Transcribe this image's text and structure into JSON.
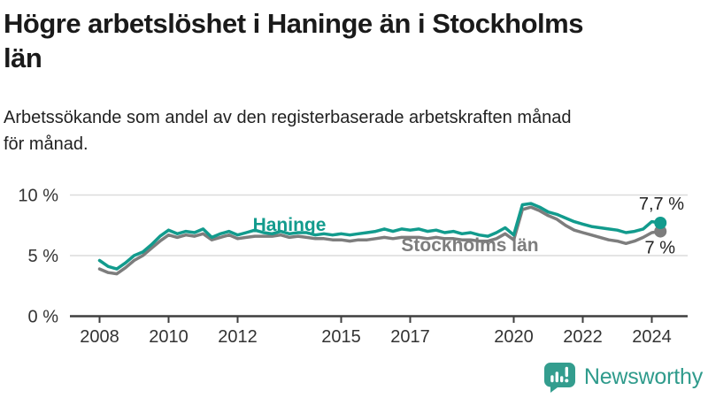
{
  "header": {
    "title": "Högre arbetslöshet i Haninge än i Stockholms län",
    "title_lines": [
      "Högre arbetslöshet i Haninge än i Stockholms",
      "län"
    ],
    "subtitle_lines": [
      "Arbetssökande som andel av den registerbaserade arbetskraften månad",
      "för månad."
    ]
  },
  "colors": {
    "haninge": "#129b8d",
    "stockholm": "#7d7d7d",
    "grid": "#dcdcdc",
    "axis": "#3f3f3f",
    "tick_text": "#333333",
    "value_text": "#222222",
    "brand": "#339d8e"
  },
  "chart_data": {
    "type": "line",
    "title": "Högre arbetslöshet i Haninge än i Stockholms län",
    "subtitle": "Arbetssökande som andel av den registerbaserade arbetskraften månad för månad.",
    "xlim": [
      2007.1,
      2025.0
    ],
    "ylim": [
      0,
      10.8
    ],
    "grid": "horizontal",
    "legend_position": "inline-labels",
    "x_ticks": [
      2008,
      2010,
      2012,
      2015,
      2017,
      2020,
      2022,
      2024
    ],
    "y_ticks": [
      10,
      5,
      0
    ],
    "y_tick_labels": [
      "10 %",
      "5 %",
      "0 %"
    ],
    "x": [
      2008,
      2008.25,
      2008.5,
      2008.75,
      2009,
      2009.25,
      2009.5,
      2009.75,
      2010,
      2010.25,
      2010.5,
      2010.75,
      2011,
      2011.25,
      2011.5,
      2011.75,
      2012,
      2012.25,
      2012.5,
      2012.75,
      2013,
      2013.25,
      2013.5,
      2013.75,
      2014,
      2014.25,
      2014.5,
      2014.75,
      2015,
      2015.25,
      2015.5,
      2015.75,
      2016,
      2016.25,
      2016.5,
      2016.75,
      2017,
      2017.25,
      2017.5,
      2017.75,
      2018,
      2018.25,
      2018.5,
      2018.75,
      2019,
      2019.25,
      2019.5,
      2019.75,
      2020,
      2020.25,
      2020.5,
      2020.75,
      2021,
      2021.25,
      2021.5,
      2021.75,
      2022,
      2022.25,
      2022.5,
      2022.75,
      2023,
      2023.25,
      2023.5,
      2023.75,
      2024,
      2024.25
    ],
    "series": [
      {
        "name": "Haninge",
        "color": "#129b8d",
        "end_label": "7,7 %",
        "end_value": 7.7,
        "values": [
          4.6,
          4.1,
          3.9,
          4.4,
          5.0,
          5.3,
          5.9,
          6.6,
          7.1,
          6.8,
          7.0,
          6.9,
          7.2,
          6.5,
          6.8,
          7.0,
          6.7,
          6.9,
          7.1,
          6.9,
          6.8,
          7.0,
          6.8,
          6.9,
          6.9,
          6.7,
          6.8,
          6.7,
          6.8,
          6.7,
          6.8,
          6.9,
          7.0,
          7.2,
          7.0,
          7.2,
          7.1,
          7.2,
          7.0,
          7.1,
          6.9,
          7.0,
          6.8,
          6.9,
          6.7,
          6.6,
          6.9,
          7.3,
          6.7,
          9.2,
          9.3,
          9.0,
          8.6,
          8.4,
          8.1,
          7.8,
          7.6,
          7.4,
          7.3,
          7.2,
          7.1,
          6.9,
          7.0,
          7.2,
          7.8,
          7.7
        ]
      },
      {
        "name": "Stockholms län",
        "color": "#7d7d7d",
        "end_label": "7 %",
        "end_value": 7.0,
        "values": [
          3.9,
          3.6,
          3.5,
          4.0,
          4.6,
          5.0,
          5.6,
          6.2,
          6.7,
          6.5,
          6.7,
          6.6,
          6.8,
          6.3,
          6.5,
          6.7,
          6.4,
          6.5,
          6.6,
          6.6,
          6.6,
          6.7,
          6.5,
          6.6,
          6.5,
          6.4,
          6.4,
          6.3,
          6.3,
          6.2,
          6.3,
          6.3,
          6.4,
          6.5,
          6.4,
          6.5,
          6.5,
          6.5,
          6.4,
          6.5,
          6.4,
          6.4,
          6.3,
          6.3,
          6.2,
          6.2,
          6.4,
          6.8,
          6.3,
          8.8,
          9.0,
          8.7,
          8.3,
          8.0,
          7.5,
          7.1,
          6.9,
          6.7,
          6.5,
          6.3,
          6.2,
          6.0,
          6.2,
          6.5,
          6.9,
          7.0
        ]
      }
    ]
  },
  "logo": {
    "text": "Newsworthy",
    "icon": "bar-chart-speech-bubble-icon"
  }
}
